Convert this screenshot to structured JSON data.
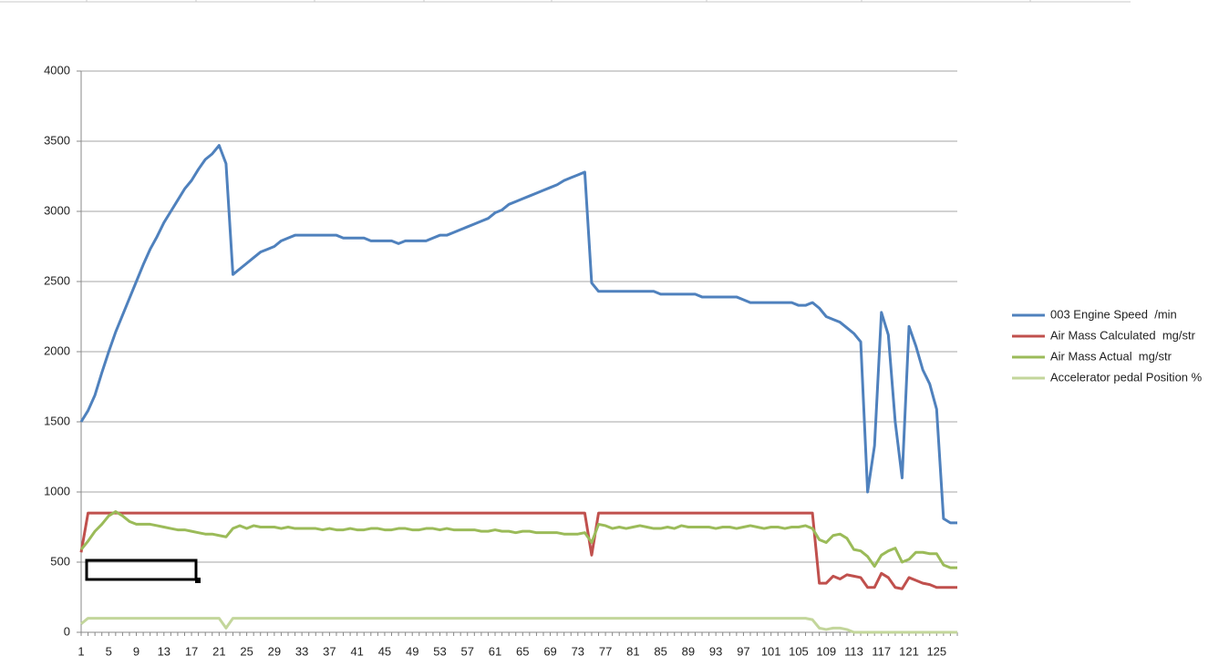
{
  "chart_data": {
    "type": "line",
    "categories": [
      1,
      null,
      null,
      null,
      5,
      null,
      null,
      null,
      9,
      null,
      null,
      null,
      13,
      null,
      null,
      null,
      17,
      null,
      null,
      null,
      21,
      null,
      null,
      null,
      25,
      null,
      null,
      null,
      29,
      null,
      null,
      null,
      33,
      null,
      null,
      null,
      37,
      null,
      null,
      null,
      41,
      null,
      null,
      null,
      45,
      null,
      null,
      null,
      49,
      null,
      null,
      null,
      53,
      null,
      null,
      null,
      57,
      null,
      null,
      null,
      61,
      null,
      null,
      null,
      65,
      null,
      null,
      null,
      69,
      null,
      null,
      null,
      73,
      null,
      null,
      null,
      77,
      null,
      null,
      null,
      81,
      null,
      null,
      null,
      85,
      null,
      null,
      null,
      89,
      null,
      null,
      null,
      93,
      null,
      null,
      null,
      97,
      null,
      null,
      null,
      101,
      null,
      null,
      null,
      105,
      null,
      null,
      null,
      109,
      null,
      null,
      null,
      113,
      null,
      null,
      null,
      117,
      null,
      null,
      null,
      121,
      null,
      null,
      null,
      125,
      null,
      null,
      null
    ],
    "series": [
      {
        "name": "003 Engine Speed  /min",
        "color": "#4f81bd",
        "values": [
          1500,
          1580,
          1690,
          1850,
          2000,
          2140,
          2260,
          2380,
          2500,
          2620,
          2730,
          2820,
          2920,
          3000,
          3080,
          3160,
          3220,
          3300,
          3370,
          3410,
          3470,
          3340,
          2550,
          2590,
          2630,
          2670,
          2710,
          2730,
          2750,
          2790,
          2810,
          2830,
          2830,
          2830,
          2830,
          2830,
          2830,
          2830,
          2810,
          2810,
          2810,
          2810,
          2790,
          2790,
          2790,
          2790,
          2770,
          2790,
          2790,
          2790,
          2790,
          2810,
          2830,
          2830,
          2850,
          2870,
          2890,
          2910,
          2930,
          2950,
          2990,
          3010,
          3050,
          3070,
          3090,
          3110,
          3130,
          3150,
          3170,
          3190,
          3220,
          3240,
          3260,
          3280,
          2490,
          2430,
          2430,
          2430,
          2430,
          2430,
          2430,
          2430,
          2430,
          2430,
          2410,
          2410,
          2410,
          2410,
          2410,
          2410,
          2390,
          2390,
          2390,
          2390,
          2390,
          2390,
          2370,
          2350,
          2350,
          2350,
          2350,
          2350,
          2350,
          2350,
          2330,
          2330,
          2350,
          2310,
          2250,
          2230,
          2210,
          2170,
          2130,
          2070,
          1000,
          1330,
          2280,
          2120,
          1500,
          1100,
          2180,
          2040,
          1870,
          1770,
          1590,
          810,
          780,
          780
        ]
      },
      {
        "name": "Air Mass Calculated  mg/str",
        "color": "#c0504d",
        "values": [
          570,
          850,
          850,
          850,
          850,
          850,
          850,
          850,
          850,
          850,
          850,
          850,
          850,
          850,
          850,
          850,
          850,
          850,
          850,
          850,
          850,
          850,
          850,
          850,
          850,
          850,
          850,
          850,
          850,
          850,
          850,
          850,
          850,
          850,
          850,
          850,
          850,
          850,
          850,
          850,
          850,
          850,
          850,
          850,
          850,
          850,
          850,
          850,
          850,
          850,
          850,
          850,
          850,
          850,
          850,
          850,
          850,
          850,
          850,
          850,
          850,
          850,
          850,
          850,
          850,
          850,
          850,
          850,
          850,
          850,
          850,
          850,
          850,
          850,
          550,
          850,
          850,
          850,
          850,
          850,
          850,
          850,
          850,
          850,
          850,
          850,
          850,
          850,
          850,
          850,
          850,
          850,
          850,
          850,
          850,
          850,
          850,
          850,
          850,
          850,
          850,
          850,
          850,
          850,
          850,
          850,
          850,
          350,
          350,
          400,
          380,
          410,
          400,
          390,
          320,
          320,
          420,
          390,
          320,
          310,
          390,
          370,
          350,
          340,
          320,
          320,
          320,
          320
        ]
      },
      {
        "name": "Air Mass Actual  mg/str",
        "color": "#9bbb59",
        "values": [
          590,
          650,
          720,
          770,
          830,
          860,
          830,
          790,
          770,
          770,
          770,
          760,
          750,
          740,
          730,
          730,
          720,
          710,
          700,
          700,
          690,
          680,
          740,
          760,
          740,
          760,
          750,
          750,
          750,
          740,
          750,
          740,
          740,
          740,
          740,
          730,
          740,
          730,
          730,
          740,
          730,
          730,
          740,
          740,
          730,
          730,
          740,
          740,
          730,
          730,
          740,
          740,
          730,
          740,
          730,
          730,
          730,
          730,
          720,
          720,
          730,
          720,
          720,
          710,
          720,
          720,
          710,
          710,
          710,
          710,
          700,
          700,
          700,
          710,
          640,
          770,
          760,
          740,
          750,
          740,
          750,
          760,
          750,
          740,
          740,
          750,
          740,
          760,
          750,
          750,
          750,
          750,
          740,
          750,
          750,
          740,
          750,
          760,
          750,
          740,
          750,
          750,
          740,
          750,
          750,
          760,
          740,
          660,
          640,
          690,
          700,
          670,
          590,
          580,
          540,
          470,
          550,
          580,
          600,
          500,
          520,
          570,
          570,
          560,
          560,
          480,
          460,
          460
        ]
      },
      {
        "name": "Accelerator pedal Position %",
        "color": "#c3d69b",
        "values": [
          60,
          100,
          100,
          100,
          100,
          100,
          100,
          100,
          100,
          100,
          100,
          100,
          100,
          100,
          100,
          100,
          100,
          100,
          100,
          100,
          100,
          30,
          100,
          100,
          100,
          100,
          100,
          100,
          100,
          100,
          100,
          100,
          100,
          100,
          100,
          100,
          100,
          100,
          100,
          100,
          100,
          100,
          100,
          100,
          100,
          100,
          100,
          100,
          100,
          100,
          100,
          100,
          100,
          100,
          100,
          100,
          100,
          100,
          100,
          100,
          100,
          100,
          100,
          100,
          100,
          100,
          100,
          100,
          100,
          100,
          100,
          100,
          100,
          100,
          100,
          100,
          100,
          100,
          100,
          100,
          100,
          100,
          100,
          100,
          100,
          100,
          100,
          100,
          100,
          100,
          100,
          100,
          100,
          100,
          100,
          100,
          100,
          100,
          100,
          100,
          100,
          100,
          100,
          100,
          100,
          100,
          90,
          30,
          20,
          30,
          30,
          20,
          0,
          0,
          0,
          0,
          0,
          0,
          0,
          0,
          0,
          0,
          0,
          0,
          0,
          0,
          0,
          0
        ]
      }
    ],
    "ylim": [
      0,
      4000
    ],
    "yticks": [
      0,
      500,
      1000,
      1500,
      2000,
      2500,
      3000,
      3500,
      4000
    ],
    "grid": true,
    "legend": "right"
  }
}
